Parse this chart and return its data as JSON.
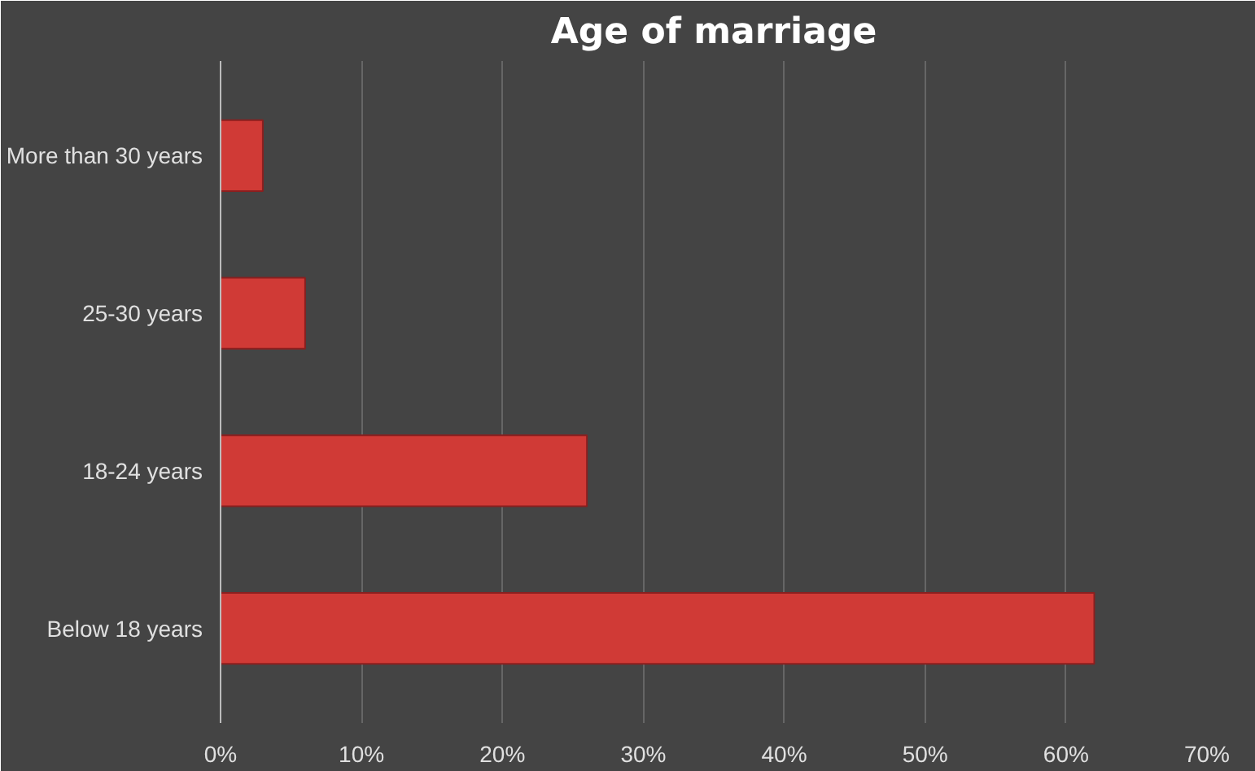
{
  "chart_data": {
    "type": "bar",
    "orientation": "horizontal",
    "title": "Age of marriage",
    "categories": [
      "More than 30 years",
      "25-30 years",
      "18-24 years",
      "Below 18 years"
    ],
    "values": [
      3,
      6,
      26,
      62
    ],
    "color": "#d03a36",
    "xlim": [
      0,
      70
    ],
    "xticks": [
      {
        "value": 0,
        "label": "0%"
      },
      {
        "value": 10,
        "label": "10%"
      },
      {
        "value": 20,
        "label": "20%"
      },
      {
        "value": 30,
        "label": "30%"
      },
      {
        "value": 40,
        "label": "40%"
      },
      {
        "value": 50,
        "label": "50%"
      },
      {
        "value": 60,
        "label": "60%"
      },
      {
        "value": 70,
        "label": "70%"
      }
    ],
    "grid": "x"
  }
}
